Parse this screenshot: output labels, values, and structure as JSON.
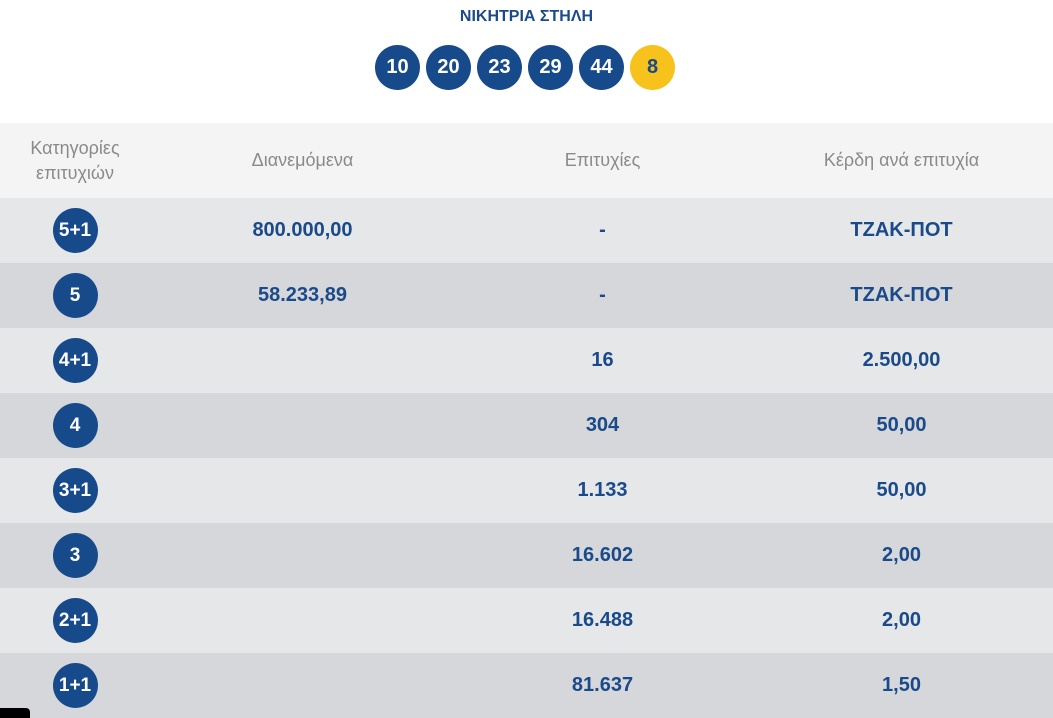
{
  "winning_line": {
    "title": "ΝΙΚΗΤΡΙΑ ΣΤΗΛΗ",
    "numbers": [
      "10",
      "20",
      "23",
      "29",
      "44"
    ],
    "joker": "8"
  },
  "table": {
    "headers": {
      "categories_line1": "Κατηγορίες",
      "categories_line2": "επιτυχιών",
      "distributed": "Διανεμόμενα",
      "winners": "Επιτυχίες",
      "prize_per_winner": "Κέρδη ανά επιτυχία"
    },
    "rows": [
      {
        "category": "5+1",
        "distributed": "800.000,00",
        "winners": "-",
        "prize": "ΤΖΑΚ-ΠΟΤ"
      },
      {
        "category": "5",
        "distributed": "58.233,89",
        "winners": "-",
        "prize": "ΤΖΑΚ-ΠΟΤ"
      },
      {
        "category": "4+1",
        "distributed": "",
        "winners": "16",
        "prize": "2.500,00"
      },
      {
        "category": "4",
        "distributed": "",
        "winners": "304",
        "prize": "50,00"
      },
      {
        "category": "3+1",
        "distributed": "",
        "winners": "1.133",
        "prize": "50,00"
      },
      {
        "category": "3",
        "distributed": "",
        "winners": "16.602",
        "prize": "2,00"
      },
      {
        "category": "2+1",
        "distributed": "",
        "winners": "16.488",
        "prize": "2,00"
      },
      {
        "category": "1+1",
        "distributed": "",
        "winners": "81.637",
        "prize": "1,50"
      }
    ]
  },
  "colors": {
    "ball_blue": "#174a8b",
    "joker_yellow": "#f7c21c",
    "text_blue": "#1a4a8a"
  }
}
